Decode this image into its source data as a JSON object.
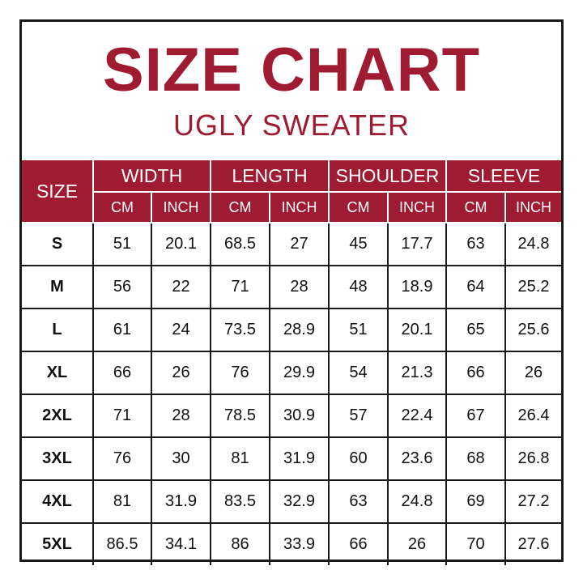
{
  "title": "SIZE CHART",
  "subtitle": "UGLY SWEATER",
  "header": {
    "size": "SIZE",
    "groups": [
      "WIDTH",
      "LENGTH",
      "SHOULDER",
      "SLEEVE"
    ],
    "unit_cm": "CM",
    "unit_inch": "INCH"
  },
  "rows": [
    {
      "size": "S",
      "values": [
        "51",
        "20.1",
        "68.5",
        "27",
        "45",
        "17.7",
        "63",
        "24.8"
      ]
    },
    {
      "size": "M",
      "values": [
        "56",
        "22",
        "71",
        "28",
        "48",
        "18.9",
        "64",
        "25.2"
      ]
    },
    {
      "size": "L",
      "values": [
        "61",
        "24",
        "73.5",
        "28.9",
        "51",
        "20.1",
        "65",
        "25.6"
      ]
    },
    {
      "size": "XL",
      "values": [
        "66",
        "26",
        "76",
        "29.9",
        "54",
        "21.3",
        "66",
        "26"
      ]
    },
    {
      "size": "2XL",
      "values": [
        "71",
        "28",
        "78.5",
        "30.9",
        "57",
        "22.4",
        "67",
        "26.4"
      ]
    },
    {
      "size": "3XL",
      "values": [
        "76",
        "30",
        "81",
        "31.9",
        "60",
        "23.6",
        "68",
        "26.8"
      ]
    },
    {
      "size": "4XL",
      "values": [
        "81",
        "31.9",
        "83.5",
        "32.9",
        "63",
        "24.8",
        "69",
        "27.2"
      ]
    },
    {
      "size": "5XL",
      "values": [
        "86.5",
        "34.1",
        "86",
        "33.9",
        "66",
        "26",
        "70",
        "27.6"
      ]
    }
  ],
  "colors": {
    "accent": "#9e1b32",
    "border": "#1a1a1a"
  }
}
